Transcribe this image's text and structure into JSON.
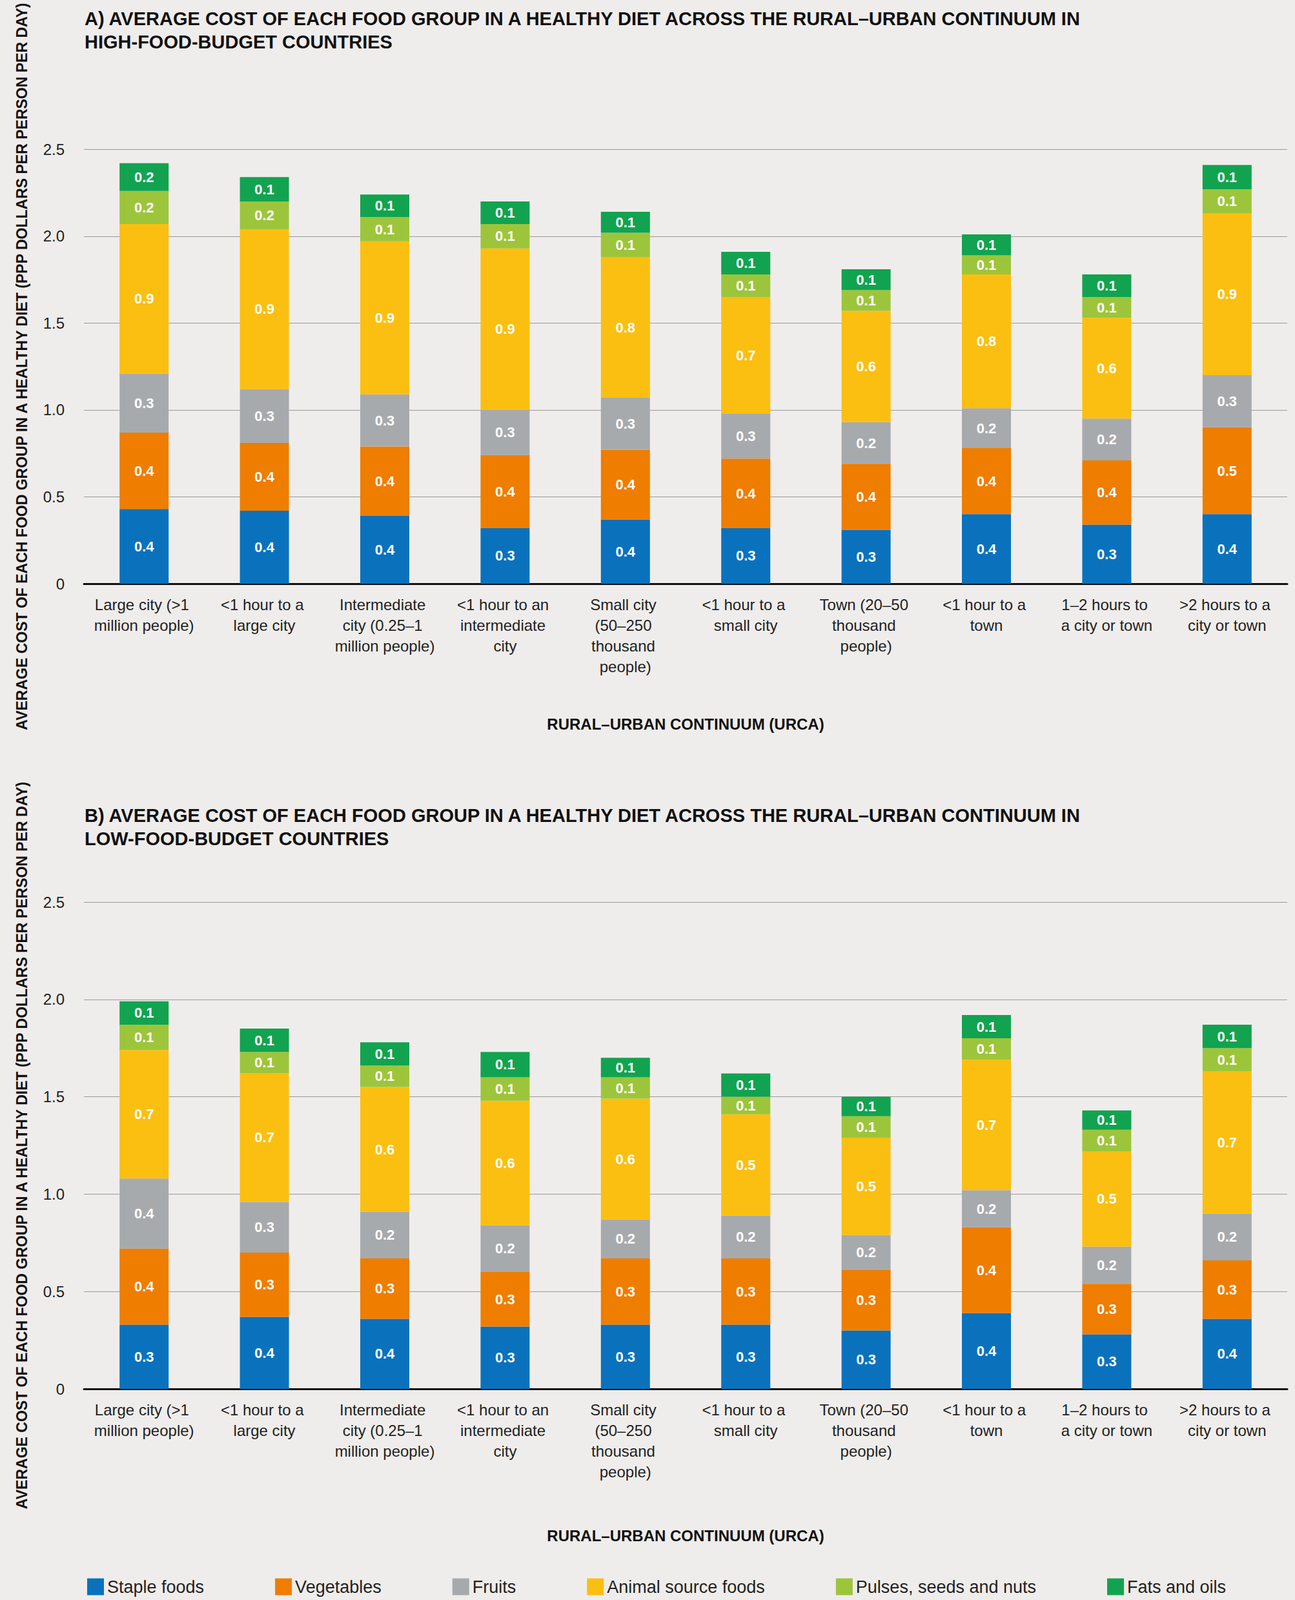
{
  "chart_data": [
    {
      "type": "bar",
      "title": "A) AVERAGE COST OF EACH FOOD GROUP IN A HEALTHY DIET ACROSS THE RURAL–URBAN CONTINUUM IN HIGH-FOOD-BUDGET COUNTRIES",
      "x_label": "RURAL–URBAN CONTINUUM (URCA)",
      "y_label": "AVERAGE COST OF EACH FOOD GROUP IN A HEALTHY DIET (PPP DOLLARS PER PERSON PER DAY)",
      "categories": [
        "Large city (>1 million people)",
        "<1 hour to a large city",
        "Intermediate city (0.25–1 million people)",
        "<1 hour to an intermediate city",
        "Small city (50–250 thousand people)",
        "<1 hour to a small city",
        "Town (20–50 thousand people)",
        "<1 hour to a town",
        "1–2 hours to a city or town",
        ">2 hours to a city or town"
      ],
      "ylim": [
        0,
        2.5
      ],
      "yticks": [
        0,
        0.5,
        {
          "value": 1,
          "label": "1.0"
        },
        1.5,
        {
          "value": 2,
          "label": "2.0"
        },
        2.5
      ],
      "grid": true,
      "stacked": true,
      "data_labels": true,
      "series": [
        {
          "name": "Staple foods",
          "color": "#0a72bd",
          "values": [
            0.43,
            0.42,
            0.39,
            0.32,
            0.37,
            0.32,
            0.31,
            0.4,
            0.34,
            0.4
          ],
          "value_labels": [
            "0.4",
            "0.4",
            "0.4",
            "0.3",
            "0.4",
            "0.3",
            "0.3",
            "0.4",
            "0.3",
            "0.4"
          ]
        },
        {
          "name": "Vegetables",
          "color": "#ef7d00",
          "values": [
            0.44,
            0.39,
            0.4,
            0.42,
            0.4,
            0.4,
            0.38,
            0.38,
            0.37,
            0.5
          ],
          "value_labels": [
            "0.4",
            "0.4",
            "0.4",
            "0.4",
            "0.4",
            "0.4",
            "0.4",
            "0.4",
            "0.4",
            "0.5"
          ]
        },
        {
          "name": "Fruits",
          "color": "#a7aaad",
          "values": [
            0.34,
            0.31,
            0.3,
            0.26,
            0.3,
            0.26,
            0.24,
            0.23,
            0.24,
            0.3
          ],
          "value_labels": [
            "0.3",
            "0.3",
            "0.3",
            "0.3",
            "0.3",
            "0.3",
            "0.2",
            "0.2",
            "0.2",
            "0.3"
          ]
        },
        {
          "name": "Animal source foods",
          "color": "#fbbf11",
          "values": [
            0.86,
            0.92,
            0.88,
            0.93,
            0.81,
            0.67,
            0.64,
            0.77,
            0.58,
            0.93
          ],
          "value_labels": [
            "0.9",
            "0.9",
            "0.9",
            "0.9",
            "0.8",
            "0.7",
            "0.6",
            "0.8",
            "0.6",
            "0.9"
          ]
        },
        {
          "name": "Pulses, seeds and nuts",
          "color": "#9dc53b",
          "values": [
            0.19,
            0.16,
            0.14,
            0.14,
            0.14,
            0.13,
            0.12,
            0.11,
            0.12,
            0.14
          ],
          "value_labels": [
            "0.2",
            "0.2",
            "0.1",
            "0.1",
            "0.1",
            "0.1",
            "0.1",
            "0.1",
            "0.1",
            "0.1"
          ]
        },
        {
          "name": "Fats and oils",
          "color": "#12a350",
          "values": [
            0.16,
            0.14,
            0.13,
            0.13,
            0.12,
            0.13,
            0.12,
            0.12,
            0.13,
            0.14
          ],
          "value_labels": [
            "0.2",
            "0.1",
            "0.1",
            "0.1",
            "0.1",
            "0.1",
            "0.1",
            "0.1",
            "0.1",
            "0.1"
          ]
        }
      ]
    },
    {
      "type": "bar",
      "title": "B) AVERAGE COST OF EACH FOOD GROUP IN A HEALTHY DIET ACROSS THE RURAL–URBAN CONTINUUM IN LOW-FOOD-BUDGET COUNTRIES",
      "x_label": "RURAL–URBAN CONTINUUM (URCA)",
      "y_label": "AVERAGE COST OF EACH FOOD GROUP IN A HEALTHY DIET (PPP DOLLARS PER PERSON PER DAY)",
      "categories": [
        "Large city (>1 million people)",
        "<1 hour to a large city",
        "Intermediate city (0.25–1 million people)",
        "<1 hour to an intermediate city",
        "Small city (50–250 thousand people)",
        "<1 hour to a small city",
        "Town (20–50 thousand people)",
        "<1 hour to a town",
        "1–2 hours to a city or town",
        ">2 hours to a city or town"
      ],
      "ylim": [
        0,
        2.5
      ],
      "yticks": [
        0,
        0.5,
        {
          "value": 1,
          "label": "1.0"
        },
        1.5,
        {
          "value": 2,
          "label": "2.0"
        },
        2.5
      ],
      "grid": true,
      "stacked": true,
      "data_labels": true,
      "legend": "bottom",
      "series": [
        {
          "name": "Staple foods",
          "color": "#0a72bd",
          "values": [
            0.33,
            0.37,
            0.36,
            0.32,
            0.33,
            0.33,
            0.3,
            0.39,
            0.28,
            0.36
          ],
          "value_labels": [
            "0.3",
            "0.4",
            "0.4",
            "0.3",
            "0.3",
            "0.3",
            "0.3",
            "0.4",
            "0.3",
            "0.4"
          ]
        },
        {
          "name": "Vegetables",
          "color": "#ef7d00",
          "values": [
            0.39,
            0.33,
            0.31,
            0.28,
            0.34,
            0.34,
            0.31,
            0.44,
            0.26,
            0.3
          ],
          "value_labels": [
            "0.4",
            "0.3",
            "0.3",
            "0.3",
            "0.3",
            "0.3",
            "0.3",
            "0.4",
            "0.3",
            "0.3"
          ]
        },
        {
          "name": "Fruits",
          "color": "#a7aaad",
          "values": [
            0.36,
            0.26,
            0.24,
            0.24,
            0.2,
            0.22,
            0.18,
            0.19,
            0.19,
            0.24
          ],
          "value_labels": [
            "0.4",
            "0.3",
            "0.2",
            "0.2",
            "0.2",
            "0.2",
            "0.2",
            "0.2",
            "0.2",
            "0.2"
          ]
        },
        {
          "name": "Animal source foods",
          "color": "#fbbf11",
          "values": [
            0.66,
            0.66,
            0.64,
            0.64,
            0.62,
            0.52,
            0.5,
            0.67,
            0.49,
            0.73
          ],
          "value_labels": [
            "0.7",
            "0.7",
            "0.6",
            "0.6",
            "0.6",
            "0.5",
            "0.5",
            "0.7",
            "0.5",
            "0.7"
          ]
        },
        {
          "name": "Pulses, seeds and nuts",
          "color": "#9dc53b",
          "values": [
            0.13,
            0.11,
            0.11,
            0.12,
            0.11,
            0.09,
            0.11,
            0.11,
            0.11,
            0.12
          ],
          "value_labels": [
            "0.1",
            "0.1",
            "0.1",
            "0.1",
            "0.1",
            "0.1",
            "0.1",
            "0.1",
            "0.1",
            "0.1"
          ]
        },
        {
          "name": "Fats and oils",
          "color": "#12a350",
          "values": [
            0.12,
            0.12,
            0.12,
            0.13,
            0.1,
            0.12,
            0.1,
            0.12,
            0.1,
            0.12
          ],
          "value_labels": [
            "0.1",
            "0.1",
            "0.1",
            "0.1",
            "0.1",
            "0.1",
            "0.1",
            "0.1",
            "0.1",
            "0.1"
          ]
        }
      ]
    }
  ]
}
